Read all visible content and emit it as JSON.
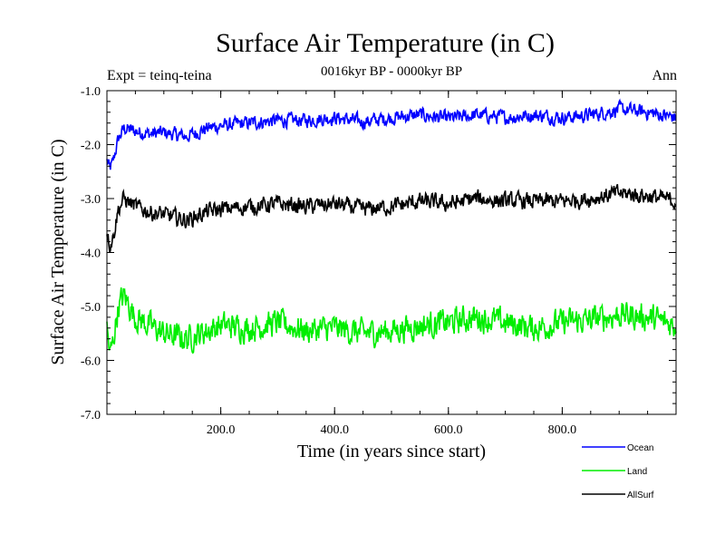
{
  "chart_data": {
    "type": "line",
    "title": "Surface Air Temperature (in C)",
    "subtitle": "0016kyr BP - 0000kyr BP",
    "expt_label": "Expt = teinq-teina",
    "period_label": "Ann",
    "xlabel": "Time (in years since start)",
    "ylabel": "Surface Air Temperature (in C)",
    "xlim": [
      0,
      1000
    ],
    "ylim": [
      -7.0,
      -1.0
    ],
    "xticks": [
      200,
      400,
      600,
      800
    ],
    "xtick_labels": [
      "200.0",
      "400.0",
      "600.0",
      "800.0"
    ],
    "yticks": [
      -1.0,
      -2.0,
      -3.0,
      -4.0,
      -5.0,
      -6.0,
      -7.0
    ],
    "ytick_labels": [
      "-1.0",
      "-2.0",
      "-3.0",
      "-4.0",
      "-5.0",
      "-6.0",
      "-7.0"
    ],
    "grid": false,
    "legend_position": "bottom-right",
    "series": [
      {
        "name": "Ocean",
        "color": "#0000ff",
        "x": [
          0,
          5,
          10,
          20,
          30,
          50,
          75,
          100,
          140,
          175,
          200,
          250,
          300,
          350,
          400,
          450,
          500,
          550,
          600,
          650,
          700,
          750,
          800,
          850,
          900,
          950,
          1000
        ],
        "values": [
          -2.3,
          -2.45,
          -2.35,
          -1.9,
          -1.7,
          -1.75,
          -1.8,
          -1.78,
          -1.85,
          -1.7,
          -1.65,
          -1.6,
          -1.55,
          -1.55,
          -1.5,
          -1.58,
          -1.5,
          -1.45,
          -1.52,
          -1.45,
          -1.5,
          -1.45,
          -1.5,
          -1.45,
          -1.35,
          -1.4,
          -1.5
        ]
      },
      {
        "name": "Land",
        "color": "#00ee00",
        "x": [
          0,
          5,
          10,
          20,
          30,
          50,
          75,
          100,
          140,
          175,
          200,
          250,
          300,
          350,
          400,
          450,
          500,
          550,
          600,
          650,
          700,
          750,
          800,
          850,
          900,
          950,
          1000
        ],
        "values": [
          -5.4,
          -5.9,
          -5.7,
          -5.0,
          -4.8,
          -5.2,
          -5.35,
          -5.5,
          -5.6,
          -5.45,
          -5.35,
          -5.4,
          -5.3,
          -5.45,
          -5.4,
          -5.5,
          -5.45,
          -5.35,
          -5.3,
          -5.2,
          -5.3,
          -5.4,
          -5.3,
          -5.25,
          -5.15,
          -5.2,
          -5.35
        ]
      },
      {
        "name": "AllSurf",
        "color": "#000000",
        "x": [
          0,
          5,
          10,
          20,
          30,
          50,
          75,
          100,
          140,
          175,
          200,
          250,
          300,
          350,
          400,
          450,
          500,
          550,
          600,
          650,
          700,
          750,
          800,
          850,
          900,
          950,
          1000
        ],
        "values": [
          -3.6,
          -3.85,
          -3.75,
          -3.2,
          -3.0,
          -3.15,
          -3.25,
          -3.3,
          -3.4,
          -3.25,
          -3.2,
          -3.15,
          -3.1,
          -3.15,
          -3.1,
          -3.2,
          -3.15,
          -3.05,
          -3.1,
          -3.0,
          -3.05,
          -3.05,
          -3.05,
          -3.0,
          -2.9,
          -2.95,
          -3.05
        ]
      }
    ]
  }
}
